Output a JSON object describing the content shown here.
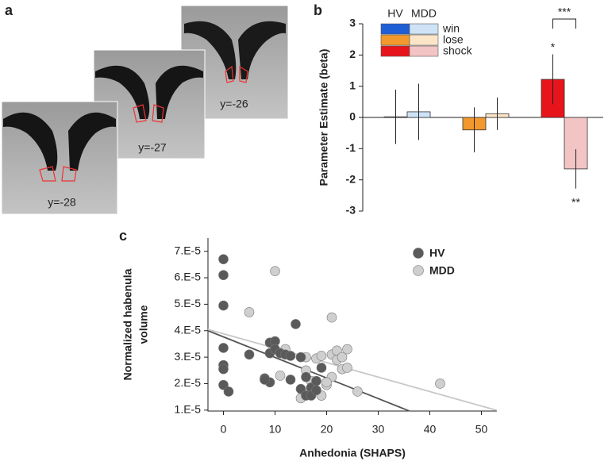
{
  "panel_labels": [
    "a",
    "b",
    "c"
  ],
  "images": [
    {
      "label": "y=-26"
    },
    {
      "label": "y=-27"
    },
    {
      "label": "y=-28"
    }
  ],
  "chart_data": [
    {
      "type": "bar",
      "ylabel": "Parameter Estimate (beta)",
      "categories": [
        "win",
        "lose",
        "shock"
      ],
      "series": [
        {
          "name": "HV",
          "colors": [
            "#1f5fd6",
            "#f3982c",
            "#e8141b"
          ],
          "values": [
            0.02,
            -0.4,
            1.22
          ],
          "errors": [
            0.87,
            0.72,
            0.8
          ]
        },
        {
          "name": "MDD",
          "colors": [
            "#cfe3f7",
            "#fde5c8",
            "#f2c4c4"
          ],
          "values": [
            0.18,
            0.12,
            -1.65
          ],
          "errors": [
            0.9,
            0.52,
            0.63
          ]
        }
      ],
      "annotations": [
        "*",
        "**",
        "***"
      ],
      "ylim": [
        -3,
        3
      ],
      "yticks": [
        -3,
        -2,
        -1,
        0,
        1,
        2,
        3
      ]
    },
    {
      "type": "scatter",
      "xlabel": "Anhedonia (SHAPS)",
      "ylabel": [
        "Normalized habenula",
        "volume"
      ],
      "series": [
        {
          "name": "HV",
          "color": "#5a5a5a",
          "x": [
            0,
            0,
            0,
            0,
            0,
            0,
            0,
            1,
            5,
            8,
            9,
            9,
            9,
            10,
            10,
            11,
            12,
            13,
            14,
            15,
            15,
            16,
            16,
            17,
            17,
            18,
            18,
            19,
            8,
            13
          ],
          "y": [
            6.7e-05,
            6.1e-05,
            4.95e-05,
            3.35e-05,
            2.7e-05,
            2.55e-05,
            1.95e-05,
            1.7e-05,
            3.1e-05,
            2.2e-05,
            3.55e-05,
            3.15e-05,
            2.05e-05,
            3.6e-05,
            3.3e-05,
            3.15e-05,
            3.1e-05,
            2.15e-05,
            4.25e-05,
            3e-05,
            1.8e-05,
            2.25e-05,
            1.55e-05,
            1.85e-05,
            1.55e-05,
            2.1e-05,
            1.75e-05,
            2.6e-05,
            2.15e-05,
            3.05e-05
          ]
        },
        {
          "name": "MDD",
          "color": "#cfcfcf",
          "x": [
            10,
            5,
            21,
            12,
            16,
            17,
            16,
            17,
            19,
            20,
            21,
            22,
            22,
            23,
            23,
            24,
            24,
            21,
            26,
            42,
            11,
            15,
            16,
            18,
            20,
            19
          ],
          "y": [
            6.25e-05,
            4.7e-05,
            4.5e-05,
            3.3e-05,
            3e-05,
            2.1e-05,
            2.5e-05,
            1.85e-05,
            1.55e-05,
            1.95e-05,
            3.1e-05,
            3.25e-05,
            2.9e-05,
            3e-05,
            2.55e-05,
            3.3e-05,
            2.6e-05,
            2.25e-05,
            1.7e-05,
            2e-05,
            2.3e-05,
            1.45e-05,
            1.6e-05,
            2.95e-05,
            2.05e-05,
            3.05e-05
          ]
        }
      ],
      "fit_lines": [
        {
          "color": "#555555",
          "x": [
            -3,
            36
          ],
          "y": [
            4e-05,
            9.7e-06
          ]
        },
        {
          "color": "#c8c8c8",
          "x": [
            -3,
            53
          ],
          "y": [
            4.05e-05,
            9.9e-06
          ]
        }
      ],
      "xlim": [
        -3,
        53
      ],
      "xticks": [
        0,
        10,
        20,
        30,
        40,
        50
      ],
      "ylim": [
        9.65e-06,
        7.5e-05
      ],
      "yticks": [
        {
          "value": 1e-05,
          "label": "1.E-5"
        },
        {
          "value": 2e-05,
          "label": "2.E-5"
        },
        {
          "value": 3e-05,
          "label": "3.E-5"
        },
        {
          "value": 4e-05,
          "label": "4.E-5"
        },
        {
          "value": 5e-05,
          "label": "5.E-5"
        },
        {
          "value": 6e-05,
          "label": "6.E-5"
        },
        {
          "value": 7e-05,
          "label": "7.E-5"
        }
      ]
    }
  ]
}
